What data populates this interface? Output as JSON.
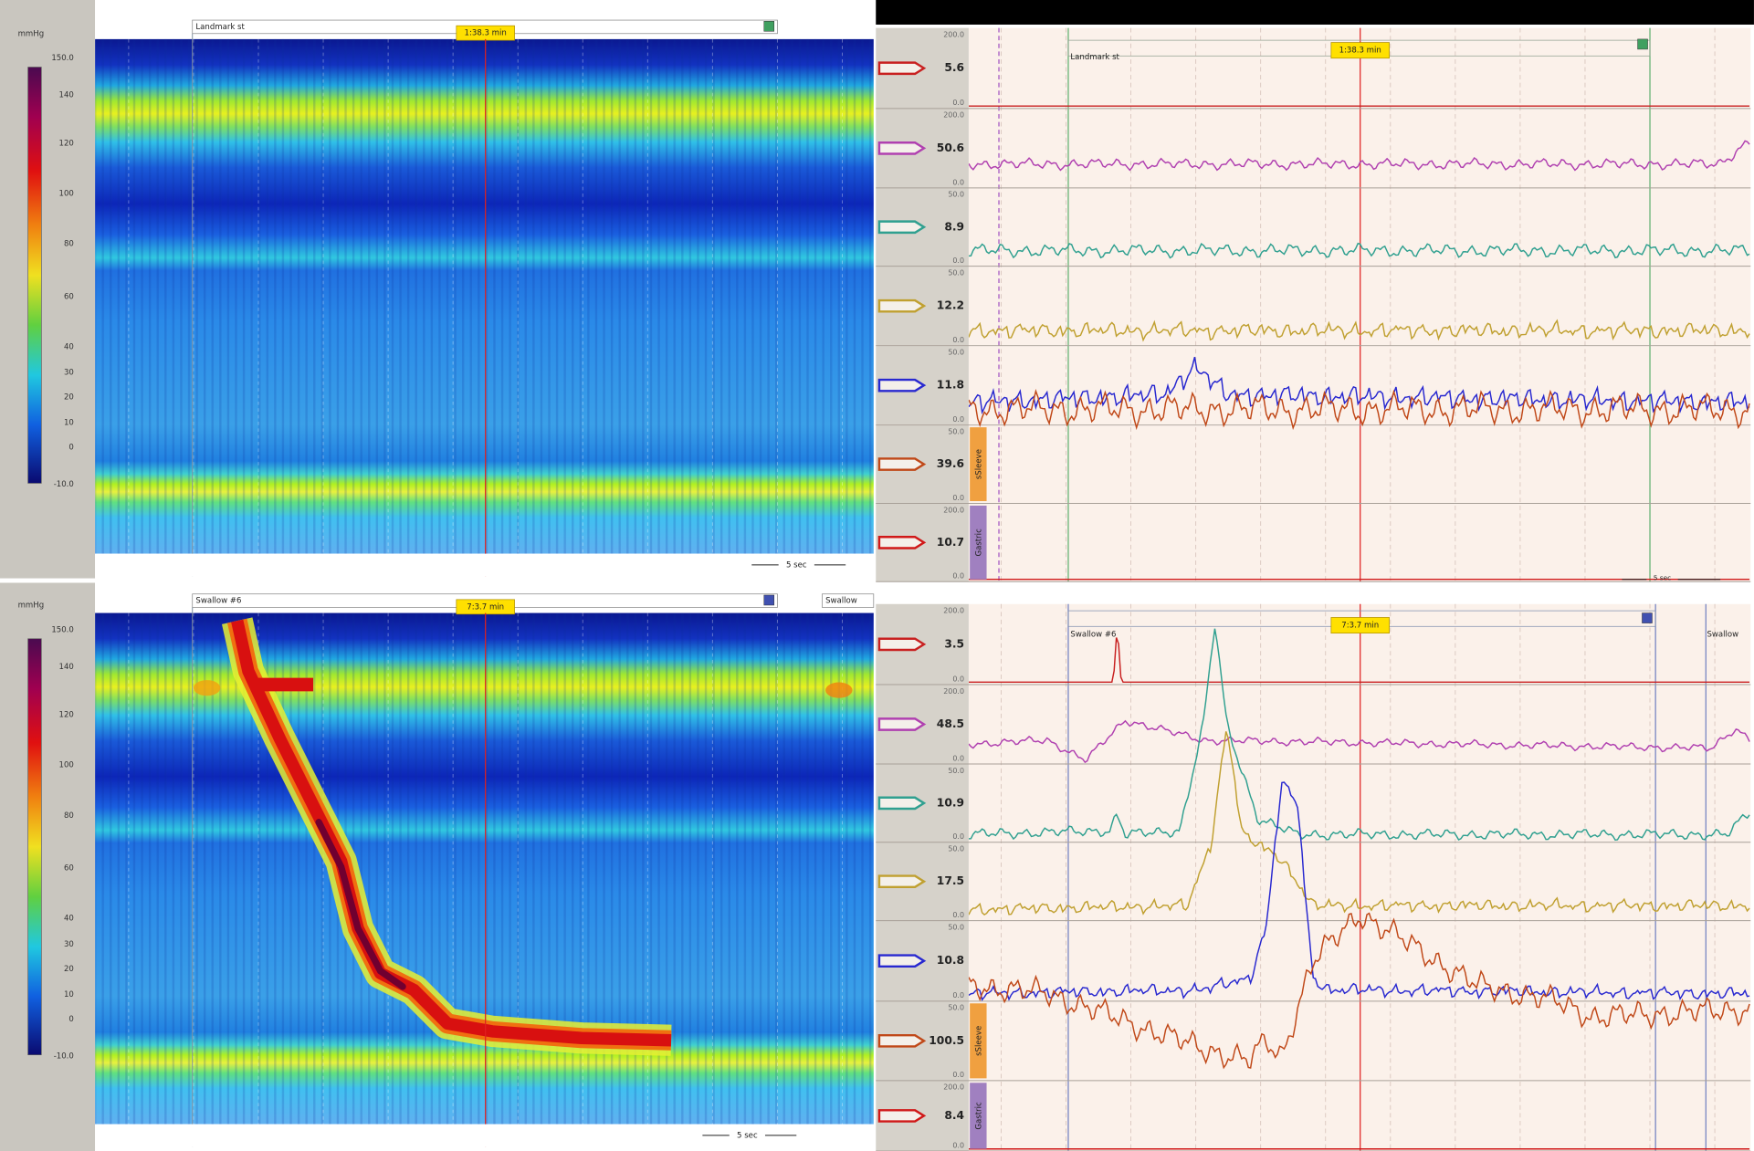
{
  "left_top": {
    "unit": "mmHg",
    "scale_ticks": [
      "150.0",
      "140",
      "120",
      "100",
      "80",
      "60",
      "40",
      "30",
      "20",
      "10",
      "0",
      "-10.0"
    ],
    "marker": "Landmark st",
    "time": "1:38.3 min",
    "scale_bar": "5 sec"
  },
  "left_bottom": {
    "unit": "mmHg",
    "scale_ticks": [
      "150.0",
      "140",
      "120",
      "100",
      "80",
      "60",
      "40",
      "30",
      "20",
      "10",
      "0",
      "-10.0"
    ],
    "marker": "Swallow #6",
    "marker_next": "Swallow",
    "time": "7:3.7 min",
    "scale_bar": "5 sec"
  },
  "right_top": {
    "marker": "Landmark st",
    "time": "1:38.3 min",
    "scale_bar": "5 sec",
    "sleeve_label": "sSleeve",
    "gastric_label": "Gastric",
    "channels": [
      {
        "max": "200.0",
        "min": "0.0",
        "value": "5.6"
      },
      {
        "max": "200.0",
        "min": "0.0",
        "value": "50.6"
      },
      {
        "max": "50.0",
        "min": "0.0",
        "value": "8.9"
      },
      {
        "max": "50.0",
        "min": "0.0",
        "value": "12.2"
      },
      {
        "max": "50.0",
        "min": "0.0",
        "value": "11.8"
      },
      {
        "max": "50.0",
        "min": "0.0",
        "value": "39.6"
      },
      {
        "max": "200.0",
        "min": "0.0",
        "value": "10.7"
      }
    ]
  },
  "right_bottom": {
    "marker": "Swallow #6",
    "marker_next": "Swallow",
    "time": "7:3.7 min",
    "sleeve_label": "sSleeve",
    "gastric_label": "Gastric",
    "channels": [
      {
        "max": "200.0",
        "min": "0.0",
        "value": "3.5"
      },
      {
        "max": "200.0",
        "min": "0.0",
        "value": "48.5"
      },
      {
        "max": "50.0",
        "min": "0.0",
        "value": "10.9"
      },
      {
        "max": "50.0",
        "min": "0.0",
        "value": "17.5"
      },
      {
        "max": "50.0",
        "min": "0.0",
        "value": "10.8"
      },
      {
        "max": "50.0",
        "min": "0.0",
        "value": "100.5"
      },
      {
        "max": "200.0",
        "min": "0.0",
        "value": "8.4"
      }
    ]
  }
}
